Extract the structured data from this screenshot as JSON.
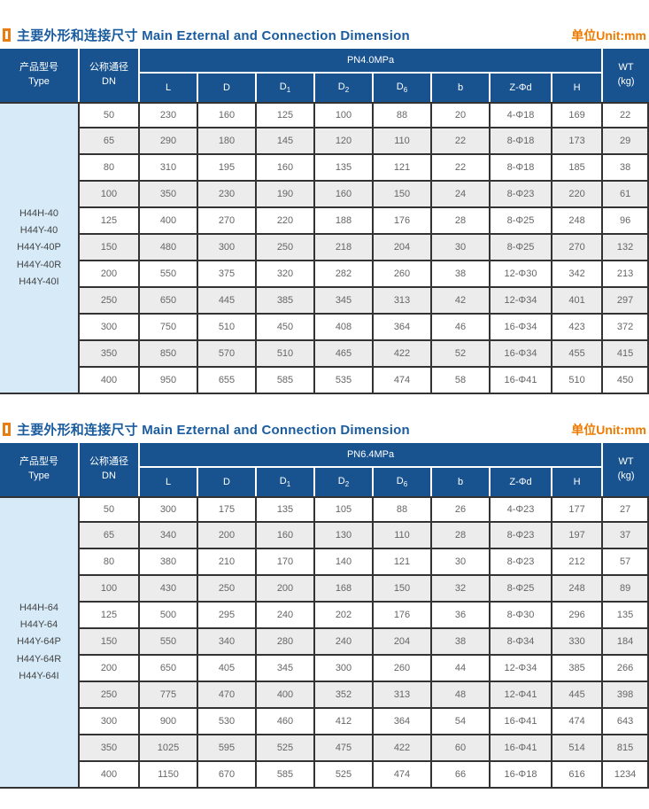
{
  "sections": [
    {
      "title": {
        "zh": "主要外形和连接尺寸",
        "en": "Main Ezternal and Connection Dimension"
      },
      "unit_label": "单位Unit:mm",
      "table": {
        "type_header": {
          "zh": "产品型号",
          "en": "Type"
        },
        "dn_header": {
          "zh": "公称通径",
          "en": "DN"
        },
        "pn_header": "PN4.0MPa",
        "wt_header": {
          "line1": "WT",
          "line2": "(kg)"
        },
        "dim_columns": [
          {
            "t": "L"
          },
          {
            "t": "D"
          },
          {
            "t": "D",
            "s": "1"
          },
          {
            "t": "D",
            "s": "2"
          },
          {
            "t": "D",
            "s": "6"
          },
          {
            "t": "b"
          },
          {
            "t": "Z-Φd"
          },
          {
            "t": "H"
          }
        ],
        "product_types": [
          "H44H-40",
          "H44Y-40",
          "H44Y-40P",
          "H44Y-40R",
          "H44Y-40I"
        ],
        "rows": [
          [
            "50",
            "230",
            "160",
            "125",
            "100",
            "88",
            "20",
            "4-Φ18",
            "169",
            "22"
          ],
          [
            "65",
            "290",
            "180",
            "145",
            "120",
            "110",
            "22",
            "8-Φ18",
            "173",
            "29"
          ],
          [
            "80",
            "310",
            "195",
            "160",
            "135",
            "121",
            "22",
            "8-Φ18",
            "185",
            "38"
          ],
          [
            "100",
            "350",
            "230",
            "190",
            "160",
            "150",
            "24",
            "8-Φ23",
            "220",
            "61"
          ],
          [
            "125",
            "400",
            "270",
            "220",
            "188",
            "176",
            "28",
            "8-Φ25",
            "248",
            "96"
          ],
          [
            "150",
            "480",
            "300",
            "250",
            "218",
            "204",
            "30",
            "8-Φ25",
            "270",
            "132"
          ],
          [
            "200",
            "550",
            "375",
            "320",
            "282",
            "260",
            "38",
            "12-Φ30",
            "342",
            "213"
          ],
          [
            "250",
            "650",
            "445",
            "385",
            "345",
            "313",
            "42",
            "12-Φ34",
            "401",
            "297"
          ],
          [
            "300",
            "750",
            "510",
            "450",
            "408",
            "364",
            "46",
            "16-Φ34",
            "423",
            "372"
          ],
          [
            "350",
            "850",
            "570",
            "510",
            "465",
            "422",
            "52",
            "16-Φ34",
            "455",
            "415"
          ],
          [
            "400",
            "950",
            "655",
            "585",
            "535",
            "474",
            "58",
            "16-Φ41",
            "510",
            "450"
          ]
        ]
      }
    },
    {
      "title": {
        "zh": "主要外形和连接尺寸",
        "en": "Main Ezternal and Connection Dimension"
      },
      "unit_label": "单位Unit:mm",
      "table": {
        "type_header": {
          "zh": "产品型号",
          "en": "Type"
        },
        "dn_header": {
          "zh": "公称通径",
          "en": "DN"
        },
        "pn_header": "PN6.4MPa",
        "wt_header": {
          "line1": "WT",
          "line2": "(kg)"
        },
        "dim_columns": [
          {
            "t": "L"
          },
          {
            "t": "D"
          },
          {
            "t": "D",
            "s": "1"
          },
          {
            "t": "D",
            "s": "2"
          },
          {
            "t": "D",
            "s": "6"
          },
          {
            "t": "b"
          },
          {
            "t": "Z-Φd"
          },
          {
            "t": "H"
          }
        ],
        "product_types": [
          "H44H-64",
          "H44Y-64",
          "H44Y-64P",
          "H44Y-64R",
          "H44Y-64I"
        ],
        "rows": [
          [
            "50",
            "300",
            "175",
            "135",
            "105",
            "88",
            "26",
            "4-Φ23",
            "177",
            "27"
          ],
          [
            "65",
            "340",
            "200",
            "160",
            "130",
            "110",
            "28",
            "8-Φ23",
            "197",
            "37"
          ],
          [
            "80",
            "380",
            "210",
            "170",
            "140",
            "121",
            "30",
            "8-Φ23",
            "212",
            "57"
          ],
          [
            "100",
            "430",
            "250",
            "200",
            "168",
            "150",
            "32",
            "8-Φ25",
            "248",
            "89"
          ],
          [
            "125",
            "500",
            "295",
            "240",
            "202",
            "176",
            "36",
            "8-Φ30",
            "296",
            "135"
          ],
          [
            "150",
            "550",
            "340",
            "280",
            "240",
            "204",
            "38",
            "8-Φ34",
            "330",
            "184"
          ],
          [
            "200",
            "650",
            "405",
            "345",
            "300",
            "260",
            "44",
            "12-Φ34",
            "385",
            "266"
          ],
          [
            "250",
            "775",
            "470",
            "400",
            "352",
            "313",
            "48",
            "12-Φ41",
            "445",
            "398"
          ],
          [
            "300",
            "900",
            "530",
            "460",
            "412",
            "364",
            "54",
            "16-Φ41",
            "474",
            "643"
          ],
          [
            "350",
            "1025",
            "595",
            "525",
            "475",
            "422",
            "60",
            "16-Φ41",
            "514",
            "815"
          ],
          [
            "400",
            "1150",
            "670",
            "585",
            "525",
            "474",
            "66",
            "16-Φ18",
            "616",
            "1234"
          ]
        ]
      }
    }
  ],
  "colors": {
    "header_blue": "#185390",
    "type_column_blue": "#d6eaf8",
    "row_alt_gray": "#ececec",
    "border_dark": "#333333",
    "title_blue": "#1a5c9e",
    "accent_orange": "#ee7a00"
  }
}
